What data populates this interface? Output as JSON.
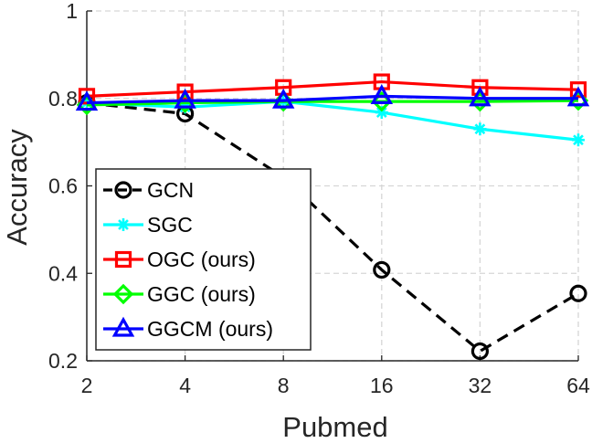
{
  "chart_data": {
    "type": "line",
    "xlabel": "Pubmed",
    "ylabel": "Accuracy",
    "categories": [
      "2",
      "4",
      "8",
      "16",
      "32",
      "64"
    ],
    "ylim": [
      0.2,
      1
    ],
    "yticks": [
      "0.2",
      "0.4",
      "0.6",
      "0.8",
      "1"
    ],
    "grid": true,
    "legend_position": "bottom-left",
    "series": [
      {
        "name": "GCN",
        "values": [
          0.79,
          0.765,
          0.62,
          0.408,
          0.222,
          0.354
        ],
        "color": "#000000",
        "marker": "circle",
        "dashed": true
      },
      {
        "name": "SGC",
        "values": [
          0.79,
          0.78,
          0.793,
          0.768,
          0.73,
          0.705
        ],
        "color": "#00FFFF",
        "marker": "star",
        "dashed": false
      },
      {
        "name": "OGC (ours)",
        "values": [
          0.805,
          0.815,
          0.825,
          0.838,
          0.825,
          0.82
        ],
        "color": "#FF0000",
        "marker": "square",
        "dashed": false
      },
      {
        "name": "GGC (ours)",
        "values": [
          0.785,
          0.79,
          0.793,
          0.793,
          0.793,
          0.795
        ],
        "color": "#00FF00",
        "marker": "diamond",
        "dashed": false
      },
      {
        "name": "GGCM (ours)",
        "values": [
          0.79,
          0.795,
          0.795,
          0.805,
          0.8,
          0.8
        ],
        "color": "#0000FF",
        "marker": "triangle",
        "dashed": false
      }
    ]
  }
}
